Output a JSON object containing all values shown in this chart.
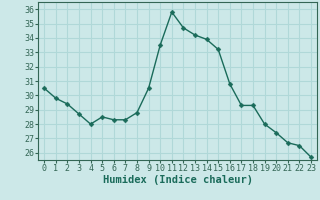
{
  "x": [
    0,
    1,
    2,
    3,
    4,
    5,
    6,
    7,
    8,
    9,
    10,
    11,
    12,
    13,
    14,
    15,
    16,
    17,
    18,
    19,
    20,
    21,
    22,
    23
  ],
  "y": [
    30.5,
    29.8,
    29.4,
    28.7,
    28.0,
    28.5,
    28.3,
    28.3,
    28.8,
    30.5,
    33.5,
    35.8,
    34.7,
    34.2,
    33.9,
    33.2,
    30.8,
    29.3,
    29.3,
    28.0,
    27.4,
    26.7,
    26.5,
    25.7
  ],
  "line_color": "#1a6b5a",
  "marker": "D",
  "markersize": 2.5,
  "linewidth": 1.0,
  "bg_color": "#cce8e8",
  "grid_color": "#b0d8d8",
  "xlabel": "Humidex (Indice chaleur)",
  "ylim": [
    25.5,
    36.5
  ],
  "xlim": [
    -0.5,
    23.5
  ],
  "yticks": [
    26,
    27,
    28,
    29,
    30,
    31,
    32,
    33,
    34,
    35,
    36
  ],
  "xticks": [
    0,
    1,
    2,
    3,
    4,
    5,
    6,
    7,
    8,
    9,
    10,
    11,
    12,
    13,
    14,
    15,
    16,
    17,
    18,
    19,
    20,
    21,
    22,
    23
  ],
  "tick_fontsize": 6.0,
  "xlabel_fontsize": 7.5,
  "spine_color": "#336655",
  "tick_color": "#336655"
}
